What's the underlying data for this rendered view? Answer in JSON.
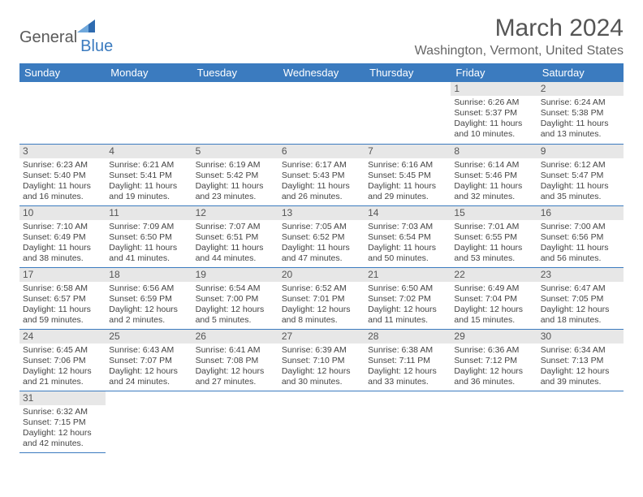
{
  "logo": {
    "part1": "General",
    "part2": "Blue"
  },
  "title": "March 2024",
  "location": "Washington, Vermont, United States",
  "colors": {
    "header_bg": "#3b7bbf",
    "header_fg": "#ffffff",
    "daynum_bg": "#e7e7e7",
    "row_divider": "#3b7bbf",
    "cell_divider": "#c0c0c0",
    "text": "#444444"
  },
  "day_headers": [
    "Sunday",
    "Monday",
    "Tuesday",
    "Wednesday",
    "Thursday",
    "Friday",
    "Saturday"
  ],
  "weeks": [
    [
      null,
      null,
      null,
      null,
      null,
      {
        "n": "1",
        "sr": "6:26 AM",
        "ss": "5:37 PM",
        "dl": "11 hours and 10 minutes."
      },
      {
        "n": "2",
        "sr": "6:24 AM",
        "ss": "5:38 PM",
        "dl": "11 hours and 13 minutes."
      }
    ],
    [
      {
        "n": "3",
        "sr": "6:23 AM",
        "ss": "5:40 PM",
        "dl": "11 hours and 16 minutes."
      },
      {
        "n": "4",
        "sr": "6:21 AM",
        "ss": "5:41 PM",
        "dl": "11 hours and 19 minutes."
      },
      {
        "n": "5",
        "sr": "6:19 AM",
        "ss": "5:42 PM",
        "dl": "11 hours and 23 minutes."
      },
      {
        "n": "6",
        "sr": "6:17 AM",
        "ss": "5:43 PM",
        "dl": "11 hours and 26 minutes."
      },
      {
        "n": "7",
        "sr": "6:16 AM",
        "ss": "5:45 PM",
        "dl": "11 hours and 29 minutes."
      },
      {
        "n": "8",
        "sr": "6:14 AM",
        "ss": "5:46 PM",
        "dl": "11 hours and 32 minutes."
      },
      {
        "n": "9",
        "sr": "6:12 AM",
        "ss": "5:47 PM",
        "dl": "11 hours and 35 minutes."
      }
    ],
    [
      {
        "n": "10",
        "sr": "7:10 AM",
        "ss": "6:49 PM",
        "dl": "11 hours and 38 minutes."
      },
      {
        "n": "11",
        "sr": "7:09 AM",
        "ss": "6:50 PM",
        "dl": "11 hours and 41 minutes."
      },
      {
        "n": "12",
        "sr": "7:07 AM",
        "ss": "6:51 PM",
        "dl": "11 hours and 44 minutes."
      },
      {
        "n": "13",
        "sr": "7:05 AM",
        "ss": "6:52 PM",
        "dl": "11 hours and 47 minutes."
      },
      {
        "n": "14",
        "sr": "7:03 AM",
        "ss": "6:54 PM",
        "dl": "11 hours and 50 minutes."
      },
      {
        "n": "15",
        "sr": "7:01 AM",
        "ss": "6:55 PM",
        "dl": "11 hours and 53 minutes."
      },
      {
        "n": "16",
        "sr": "7:00 AM",
        "ss": "6:56 PM",
        "dl": "11 hours and 56 minutes."
      }
    ],
    [
      {
        "n": "17",
        "sr": "6:58 AM",
        "ss": "6:57 PM",
        "dl": "11 hours and 59 minutes."
      },
      {
        "n": "18",
        "sr": "6:56 AM",
        "ss": "6:59 PM",
        "dl": "12 hours and 2 minutes."
      },
      {
        "n": "19",
        "sr": "6:54 AM",
        "ss": "7:00 PM",
        "dl": "12 hours and 5 minutes."
      },
      {
        "n": "20",
        "sr": "6:52 AM",
        "ss": "7:01 PM",
        "dl": "12 hours and 8 minutes."
      },
      {
        "n": "21",
        "sr": "6:50 AM",
        "ss": "7:02 PM",
        "dl": "12 hours and 11 minutes."
      },
      {
        "n": "22",
        "sr": "6:49 AM",
        "ss": "7:04 PM",
        "dl": "12 hours and 15 minutes."
      },
      {
        "n": "23",
        "sr": "6:47 AM",
        "ss": "7:05 PM",
        "dl": "12 hours and 18 minutes."
      }
    ],
    [
      {
        "n": "24",
        "sr": "6:45 AM",
        "ss": "7:06 PM",
        "dl": "12 hours and 21 minutes."
      },
      {
        "n": "25",
        "sr": "6:43 AM",
        "ss": "7:07 PM",
        "dl": "12 hours and 24 minutes."
      },
      {
        "n": "26",
        "sr": "6:41 AM",
        "ss": "7:08 PM",
        "dl": "12 hours and 27 minutes."
      },
      {
        "n": "27",
        "sr": "6:39 AM",
        "ss": "7:10 PM",
        "dl": "12 hours and 30 minutes."
      },
      {
        "n": "28",
        "sr": "6:38 AM",
        "ss": "7:11 PM",
        "dl": "12 hours and 33 minutes."
      },
      {
        "n": "29",
        "sr": "6:36 AM",
        "ss": "7:12 PM",
        "dl": "12 hours and 36 minutes."
      },
      {
        "n": "30",
        "sr": "6:34 AM",
        "ss": "7:13 PM",
        "dl": "12 hours and 39 minutes."
      }
    ],
    [
      {
        "n": "31",
        "sr": "6:32 AM",
        "ss": "7:15 PM",
        "dl": "12 hours and 42 minutes."
      },
      null,
      null,
      null,
      null,
      null,
      null
    ]
  ],
  "labels": {
    "sunrise": "Sunrise:",
    "sunset": "Sunset:",
    "daylight": "Daylight:"
  }
}
